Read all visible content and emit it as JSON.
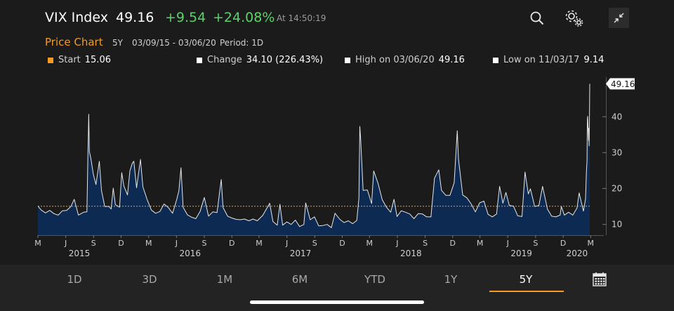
{
  "header": {
    "ticker": "VIX Index",
    "last_price": "49.16",
    "change": "+9.54",
    "change_pct": "+24.08%",
    "time": "At 14:50:19",
    "positive_color": "#5cd16a",
    "icons": [
      "search-icon",
      "settings-icon",
      "collapse-icon"
    ]
  },
  "subheader": {
    "title": "Price Chart",
    "range": "5Y",
    "dates": "03/09/15 - 03/06/20",
    "period": "Period: 1D"
  },
  "stats": {
    "start_label": "Start",
    "start_value": "15.06",
    "change_label": "Change",
    "change_value": "34.10 (226.43%)",
    "high_label": "High on 03/06/20",
    "high_value": "49.16",
    "low_label": "Low on 11/03/17",
    "low_value": "9.14",
    "start_color": "#f59a23"
  },
  "chart_data": {
    "type": "area",
    "x_start": "2015-03-09",
    "x_end": "2020-03-06",
    "points": [
      [
        "2015-03-09",
        15.1
      ],
      [
        "2015-03-20",
        14.0
      ],
      [
        "2015-04-03",
        13.2
      ],
      [
        "2015-04-17",
        13.9
      ],
      [
        "2015-05-01",
        13.0
      ],
      [
        "2015-05-15",
        12.6
      ],
      [
        "2015-05-29",
        13.8
      ],
      [
        "2015-06-12",
        13.9
      ],
      [
        "2015-06-26",
        15.0
      ],
      [
        "2015-07-07",
        17.0
      ],
      [
        "2015-07-21",
        12.6
      ],
      [
        "2015-08-07",
        13.4
      ],
      [
        "2015-08-18",
        13.5
      ],
      [
        "2015-08-21",
        28.0
      ],
      [
        "2015-08-24",
        40.7
      ],
      [
        "2015-08-26",
        30.3
      ],
      [
        "2015-08-31",
        28.4
      ],
      [
        "2015-09-08",
        24.0
      ],
      [
        "2015-09-17",
        21.1
      ],
      [
        "2015-09-28",
        27.6
      ],
      [
        "2015-10-05",
        19.5
      ],
      [
        "2015-10-16",
        15.0
      ],
      [
        "2015-10-30",
        15.0
      ],
      [
        "2015-11-06",
        14.3
      ],
      [
        "2015-11-13",
        20.1
      ],
      [
        "2015-11-20",
        15.5
      ],
      [
        "2015-12-04",
        14.8
      ],
      [
        "2015-12-11",
        24.4
      ],
      [
        "2015-12-18",
        20.7
      ],
      [
        "2015-12-30",
        18.2
      ],
      [
        "2016-01-07",
        24.9
      ],
      [
        "2016-01-15",
        27.0
      ],
      [
        "2016-01-20",
        27.6
      ],
      [
        "2016-01-29",
        20.2
      ],
      [
        "2016-02-11",
        28.1
      ],
      [
        "2016-02-19",
        20.5
      ],
      [
        "2016-03-04",
        16.9
      ],
      [
        "2016-03-18",
        14.0
      ],
      [
        "2016-04-01",
        13.1
      ],
      [
        "2016-04-15",
        13.6
      ],
      [
        "2016-04-29",
        15.7
      ],
      [
        "2016-05-13",
        14.7
      ],
      [
        "2016-05-27",
        13.1
      ],
      [
        "2016-06-10",
        17.0
      ],
      [
        "2016-06-17",
        19.4
      ],
      [
        "2016-06-24",
        25.8
      ],
      [
        "2016-07-01",
        14.8
      ],
      [
        "2016-07-15",
        12.7
      ],
      [
        "2016-07-29",
        12.0
      ],
      [
        "2016-08-12",
        11.6
      ],
      [
        "2016-08-26",
        13.6
      ],
      [
        "2016-09-09",
        17.5
      ],
      [
        "2016-09-23",
        12.3
      ],
      [
        "2016-10-07",
        13.5
      ],
      [
        "2016-10-21",
        13.3
      ],
      [
        "2016-11-04",
        22.5
      ],
      [
        "2016-11-10",
        14.7
      ],
      [
        "2016-11-25",
        12.3
      ],
      [
        "2016-12-09",
        11.8
      ],
      [
        "2016-12-23",
        11.4
      ],
      [
        "2017-01-06",
        11.3
      ],
      [
        "2017-01-20",
        11.5
      ],
      [
        "2017-02-03",
        11.0
      ],
      [
        "2017-02-17",
        11.5
      ],
      [
        "2017-03-03",
        11.0
      ],
      [
        "2017-03-21",
        12.5
      ],
      [
        "2017-04-13",
        15.9
      ],
      [
        "2017-04-24",
        10.8
      ],
      [
        "2017-05-08",
        9.8
      ],
      [
        "2017-05-17",
        15.6
      ],
      [
        "2017-05-26",
        9.8
      ],
      [
        "2017-06-09",
        10.7
      ],
      [
        "2017-06-23",
        10.0
      ],
      [
        "2017-07-07",
        11.2
      ],
      [
        "2017-07-21",
        9.4
      ],
      [
        "2017-08-04",
        10.0
      ],
      [
        "2017-08-10",
        16.0
      ],
      [
        "2017-08-25",
        11.3
      ],
      [
        "2017-09-08",
        12.1
      ],
      [
        "2017-09-22",
        9.6
      ],
      [
        "2017-10-06",
        9.7
      ],
      [
        "2017-10-20",
        10.0
      ],
      [
        "2017-11-03",
        9.1
      ],
      [
        "2017-11-15",
        13.1
      ],
      [
        "2017-12-01",
        11.4
      ],
      [
        "2017-12-15",
        10.5
      ],
      [
        "2017-12-29",
        11.0
      ],
      [
        "2018-01-12",
        10.2
      ],
      [
        "2018-01-26",
        11.1
      ],
      [
        "2018-02-02",
        17.3
      ],
      [
        "2018-02-05",
        37.3
      ],
      [
        "2018-02-08",
        33.5
      ],
      [
        "2018-02-16",
        19.5
      ],
      [
        "2018-03-02",
        19.6
      ],
      [
        "2018-03-16",
        15.8
      ],
      [
        "2018-03-23",
        24.9
      ],
      [
        "2018-04-06",
        21.5
      ],
      [
        "2018-04-20",
        16.9
      ],
      [
        "2018-05-04",
        14.8
      ],
      [
        "2018-05-18",
        13.4
      ],
      [
        "2018-05-29",
        17.0
      ],
      [
        "2018-06-08",
        12.2
      ],
      [
        "2018-06-22",
        13.8
      ],
      [
        "2018-07-06",
        13.4
      ],
      [
        "2018-07-20",
        12.9
      ],
      [
        "2018-08-03",
        11.6
      ],
      [
        "2018-08-17",
        13.0
      ],
      [
        "2018-08-31",
        12.9
      ],
      [
        "2018-09-14",
        12.1
      ],
      [
        "2018-09-28",
        12.1
      ],
      [
        "2018-10-10",
        22.9
      ],
      [
        "2018-10-24",
        25.2
      ],
      [
        "2018-11-02",
        19.5
      ],
      [
        "2018-11-16",
        18.1
      ],
      [
        "2018-11-30",
        18.1
      ],
      [
        "2018-12-14",
        21.6
      ],
      [
        "2018-12-24",
        36.1
      ],
      [
        "2018-12-28",
        28.3
      ],
      [
        "2019-01-11",
        18.2
      ],
      [
        "2019-01-25",
        17.4
      ],
      [
        "2019-02-08",
        15.7
      ],
      [
        "2019-02-22",
        13.5
      ],
      [
        "2019-03-08",
        16.0
      ],
      [
        "2019-03-22",
        16.5
      ],
      [
        "2019-04-05",
        12.8
      ],
      [
        "2019-04-19",
        12.1
      ],
      [
        "2019-05-03",
        12.9
      ],
      [
        "2019-05-13",
        20.6
      ],
      [
        "2019-05-24",
        15.9
      ],
      [
        "2019-06-03",
        18.9
      ],
      [
        "2019-06-14",
        15.3
      ],
      [
        "2019-06-28",
        15.1
      ],
      [
        "2019-07-12",
        12.4
      ],
      [
        "2019-07-26",
        12.2
      ],
      [
        "2019-08-05",
        24.6
      ],
      [
        "2019-08-16",
        18.5
      ],
      [
        "2019-08-23",
        19.9
      ],
      [
        "2019-09-06",
        15.0
      ],
      [
        "2019-09-20",
        15.3
      ],
      [
        "2019-10-02",
        20.6
      ],
      [
        "2019-10-18",
        14.3
      ],
      [
        "2019-11-01",
        12.3
      ],
      [
        "2019-11-15",
        12.1
      ],
      [
        "2019-11-29",
        12.6
      ],
      [
        "2019-12-03",
        15.0
      ],
      [
        "2019-12-13",
        12.6
      ],
      [
        "2019-12-27",
        13.4
      ],
      [
        "2020-01-10",
        12.6
      ],
      [
        "2020-01-24",
        14.6
      ],
      [
        "2020-01-31",
        18.8
      ],
      [
        "2020-02-14",
        13.7
      ],
      [
        "2020-02-21",
        17.1
      ],
      [
        "2020-02-24",
        25.0
      ],
      [
        "2020-02-26",
        27.6
      ],
      [
        "2020-02-27",
        39.2
      ],
      [
        "2020-02-28",
        40.1
      ],
      [
        "2020-03-02",
        33.4
      ],
      [
        "2020-03-03",
        36.8
      ],
      [
        "2020-03-04",
        31.9
      ],
      [
        "2020-03-05",
        39.6
      ],
      [
        "2020-03-06",
        49.16
      ]
    ],
    "ylim": [
      7,
      51
    ],
    "y_ticks": [
      "10",
      "20",
      "30",
      "40"
    ],
    "y_tick_values": [
      10,
      20,
      30,
      40
    ],
    "last_value_label": "49.16",
    "reference_value": 15.06,
    "month_ticks": [
      {
        "label": "M",
        "date": "2015-03-09"
      },
      {
        "label": "J",
        "date": "2015-06-09"
      },
      {
        "label": "S",
        "date": "2015-09-09"
      },
      {
        "label": "D",
        "date": "2015-12-09"
      },
      {
        "label": "M",
        "date": "2016-03-09"
      },
      {
        "label": "J",
        "date": "2016-06-09"
      },
      {
        "label": "S",
        "date": "2016-09-09"
      },
      {
        "label": "D",
        "date": "2016-12-09"
      },
      {
        "label": "M",
        "date": "2017-03-09"
      },
      {
        "label": "J",
        "date": "2017-06-09"
      },
      {
        "label": "S",
        "date": "2017-09-09"
      },
      {
        "label": "D",
        "date": "2017-12-09"
      },
      {
        "label": "M",
        "date": "2018-03-09"
      },
      {
        "label": "J",
        "date": "2018-06-09"
      },
      {
        "label": "S",
        "date": "2018-09-09"
      },
      {
        "label": "D",
        "date": "2018-12-09"
      },
      {
        "label": "M",
        "date": "2019-03-09"
      },
      {
        "label": "J",
        "date": "2019-06-09"
      },
      {
        "label": "S",
        "date": "2019-09-09"
      },
      {
        "label": "D",
        "date": "2019-12-09"
      },
      {
        "label": "M",
        "date": "2020-03-09"
      }
    ],
    "year_labels": [
      {
        "label": "2015",
        "date": "2015-07-24"
      },
      {
        "label": "2016",
        "date": "2016-07-24"
      },
      {
        "label": "2017",
        "date": "2017-07-24"
      },
      {
        "label": "2018",
        "date": "2018-07-24"
      },
      {
        "label": "2019",
        "date": "2019-07-24"
      },
      {
        "label": "2020",
        "date": "2020-01-24"
      }
    ],
    "fill_color": "#0d2a52",
    "line_color": "#e6e6e6",
    "reference_color": "#f59a23",
    "grid": false
  },
  "tabs": [
    {
      "label": "1D"
    },
    {
      "label": "3D"
    },
    {
      "label": "1M"
    },
    {
      "label": "6M"
    },
    {
      "label": "YTD"
    },
    {
      "label": "1Y"
    },
    {
      "label": "5Y"
    }
  ],
  "active_tab": "5Y",
  "calendar_icon": "calendar-icon"
}
